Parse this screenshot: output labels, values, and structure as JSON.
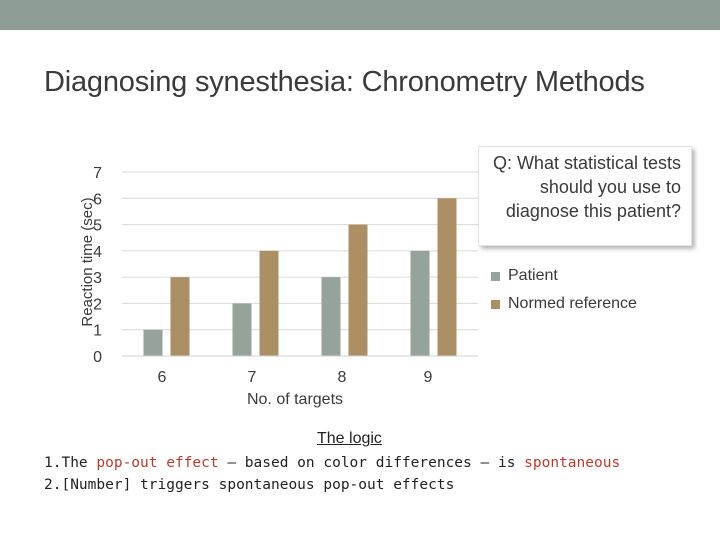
{
  "page": {
    "title": "Diagnosing synesthesia: Chronometry Methods"
  },
  "chart_data": {
    "type": "bar",
    "title": "",
    "categories": [
      "6",
      "7",
      "8",
      "9"
    ],
    "xlabel": "No. of targets",
    "ylabel": "Reaction time (sec)",
    "ylim": [
      0,
      7
    ],
    "yticks": [
      0,
      1,
      2,
      3,
      4,
      5,
      6,
      7
    ],
    "grid": true,
    "legend_position": "right",
    "series": [
      {
        "name": "Patient",
        "values": [
          1,
          2,
          3,
          4
        ],
        "color": "#95a39b"
      },
      {
        "name": "Normed reference",
        "values": [
          3,
          4,
          5,
          6
        ],
        "color": "#ad8f65"
      }
    ]
  },
  "callout": {
    "text": "Q: What statistical tests should you use to diagnose this patient?"
  },
  "logic": {
    "heading": "The logic",
    "item1": {
      "number": "1.",
      "prefix": "The ",
      "highlight1": "pop-out effect",
      "middle": " – based on color differences – is ",
      "highlight2": "spontaneous"
    },
    "item2": {
      "number": "2.",
      "text": "[Number] triggers spontaneous pop-out effects"
    }
  },
  "colors": {
    "top_bar": "#8f9e94",
    "accent_red": "#c0392b",
    "grid": "#d9d9d9"
  }
}
